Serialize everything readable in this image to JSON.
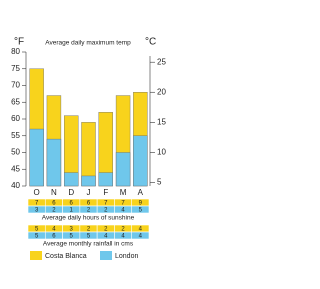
{
  "chart_data": {
    "type": "bar",
    "title": "Average daily maximum temp",
    "yaxis_label": "°F",
    "y2axis_label": "°C",
    "categories": [
      "O",
      "N",
      "D",
      "J",
      "F",
      "M",
      "A"
    ],
    "series": [
      {
        "name": "Costa Blanca",
        "color": "#f8d31c",
        "values": [
          75,
          67,
          61,
          59,
          62,
          67,
          68
        ]
      },
      {
        "name": "London",
        "color": "#6fc7eb",
        "values": [
          57,
          54,
          44,
          43,
          44,
          50,
          55
        ]
      }
    ],
    "ylim": [
      40,
      80
    ],
    "yticks": [
      40,
      45,
      50,
      55,
      60,
      65,
      70,
      75,
      80
    ],
    "y2lim": [
      4.4,
      26.7
    ],
    "y2ticks": [
      5,
      10,
      15,
      20,
      25
    ]
  },
  "sunshine": {
    "title": "Average daily hours of sunshine",
    "rows": [
      [
        7,
        6,
        6,
        6,
        7,
        7,
        9
      ],
      [
        3,
        2,
        1,
        2,
        2,
        4,
        5
      ]
    ]
  },
  "rainfall": {
    "title": "Average monthly rainfall in cms",
    "rows": [
      [
        5,
        4,
        3,
        2,
        2,
        2,
        4
      ],
      [
        5,
        6,
        5,
        5,
        4,
        4,
        4
      ]
    ]
  }
}
